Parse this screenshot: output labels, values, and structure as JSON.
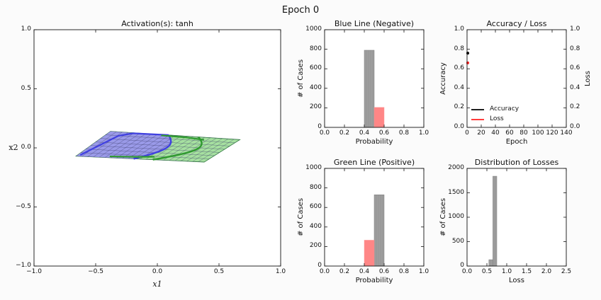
{
  "figure": {
    "suptitle": "Epoch 0"
  },
  "chart_data": [
    {
      "id": "transform",
      "type": "scatter",
      "title": "Activation(s): tanh",
      "xlabel": "x1",
      "ylabel": "x2",
      "xlim": [
        -1.0,
        1.0
      ],
      "ylim": [
        -1.0,
        1.0
      ],
      "xticks": [
        "−1.0",
        "−0.5",
        "0.0",
        "0.5",
        "1.0"
      ],
      "yticks": [
        "−1.0",
        "−0.5",
        "0.0",
        "0.5",
        "1.0"
      ],
      "grid": false,
      "mesh": {
        "corners": [
          [
            -0.66,
            -0.07
          ],
          [
            -0.38,
            0.14
          ],
          [
            0.67,
            0.07
          ],
          [
            0.38,
            -0.12
          ]
        ],
        "rows": 7,
        "cols": 22
      },
      "series": [
        {
          "color": "#4040e0",
          "fill": "#9a9ae8"
        },
        {
          "color": "#2f9a2f",
          "fill": "#a6e0a0"
        }
      ]
    },
    {
      "id": "blue_hist",
      "type": "bar",
      "title": "Blue Line (Negative)",
      "xlabel": "Probability",
      "ylabel": "# of Cases",
      "xlim": [
        0.0,
        1.0
      ],
      "ylim": [
        0,
        1000
      ],
      "xticks": [
        "0.0",
        "0.2",
        "0.4",
        "0.6",
        "0.8",
        "1.0"
      ],
      "yticks": [
        "0",
        "200",
        "400",
        "600",
        "800",
        "1000"
      ],
      "bins": [
        [
          0.4,
          0.5
        ],
        [
          0.5,
          0.6
        ]
      ],
      "series": [
        {
          "color": "#999999",
          "values": [
            790,
            0
          ]
        },
        {
          "color": "#ff8080",
          "values": [
            0,
            205
          ]
        }
      ]
    },
    {
      "id": "green_hist",
      "type": "bar",
      "title": "Green Line (Positive)",
      "xlabel": "Probability",
      "ylabel": "# of Cases",
      "xlim": [
        0.0,
        1.0
      ],
      "ylim": [
        0,
        1000
      ],
      "xticks": [
        "0.0",
        "0.2",
        "0.4",
        "0.6",
        "0.8",
        "1.0"
      ],
      "yticks": [
        "0",
        "200",
        "400",
        "600",
        "800",
        "1000"
      ],
      "bins": [
        [
          0.4,
          0.5
        ],
        [
          0.5,
          0.6
        ]
      ],
      "series": [
        {
          "color": "#999999",
          "values": [
            0,
            730
          ]
        },
        {
          "color": "#ff8080",
          "values": [
            265,
            0
          ]
        }
      ]
    },
    {
      "id": "acc_loss",
      "type": "line",
      "title": "Accuracy / Loss",
      "xlabel": "Epoch",
      "ylabel": "Accuracy",
      "ylabel_right": "Loss",
      "xlim": [
        0,
        150
      ],
      "ylim": [
        0.0,
        1.0
      ],
      "ylim_right": [
        0.0,
        1.0
      ],
      "xticks": [
        "0",
        "20",
        "40",
        "60",
        "80",
        "100",
        "120",
        "140"
      ],
      "yticks": [
        "0.0",
        "0.2",
        "0.4",
        "0.6",
        "0.8",
        "1.0"
      ],
      "yticks_right": [
        "0.0",
        "0.2",
        "0.4",
        "0.6",
        "0.8",
        "1.0"
      ],
      "legend_position": "lower-left",
      "series": [
        {
          "name": "Accuracy",
          "color": "#000000",
          "x": [
            0
          ],
          "y": [
            0.76
          ]
        },
        {
          "name": "Loss",
          "color": "#ff2020",
          "x": [
            0
          ],
          "y": [
            0.66
          ]
        }
      ]
    },
    {
      "id": "loss_hist",
      "type": "bar",
      "title": "Distribution of Losses",
      "xlabel": "Loss",
      "ylabel": "# of Cases",
      "xlim": [
        0.0,
        2.5
      ],
      "ylim": [
        0,
        2000
      ],
      "xticks": [
        "0.0",
        "0.5",
        "1.0",
        "1.5",
        "2.0",
        "2.5"
      ],
      "yticks": [
        "0",
        "500",
        "1000",
        "1500",
        "2000"
      ],
      "bins": [
        [
          0.55,
          0.65
        ],
        [
          0.65,
          0.75
        ]
      ],
      "series": [
        {
          "color": "#999999",
          "values": [
            130,
            1840
          ]
        }
      ]
    }
  ]
}
